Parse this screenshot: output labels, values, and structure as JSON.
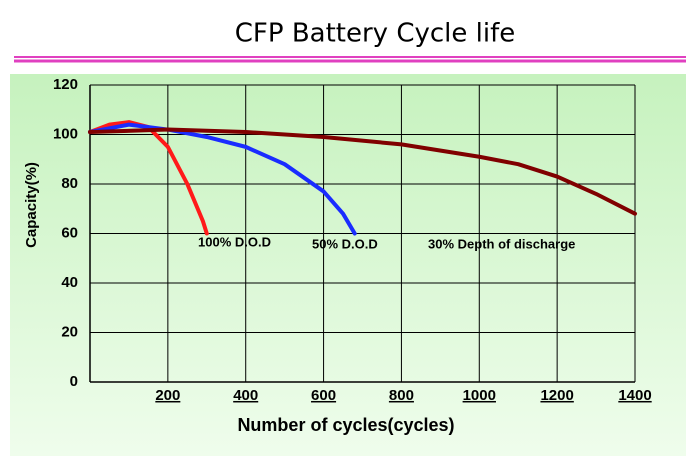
{
  "chart_data": {
    "type": "line",
    "title": "CFP Battery Cycle life",
    "x_label": "Number of cycles(cycles)",
    "y_label": "Capacity(%)",
    "xlim": [
      0,
      1400
    ],
    "xticks": [
      200,
      400,
      600,
      800,
      1000,
      1200,
      1400
    ],
    "ylim": [
      0,
      120
    ],
    "yticks": [
      0,
      20,
      40,
      60,
      80,
      100,
      120
    ],
    "grid": true,
    "series": [
      {
        "name": "100% D.O.D",
        "color": "#ff1a1a",
        "x": [
          0,
          50,
          100,
          150,
          200,
          250,
          290,
          300
        ],
        "values": [
          101,
          104,
          105,
          103,
          95,
          80,
          65,
          60
        ]
      },
      {
        "name": "50% D.O.D",
        "color": "#1a2cff",
        "x": [
          0,
          100,
          200,
          300,
          400,
          500,
          600,
          650,
          680
        ],
        "values": [
          101,
          104,
          102,
          99,
          95,
          88,
          77,
          68,
          60
        ]
      },
      {
        "name": "30% Depth of discharge",
        "color": "#800000",
        "x": [
          0,
          200,
          400,
          600,
          800,
          1000,
          1100,
          1200,
          1300,
          1400
        ],
        "values": [
          101,
          102,
          101,
          99,
          96,
          91,
          88,
          83,
          76,
          68
        ]
      }
    ]
  }
}
